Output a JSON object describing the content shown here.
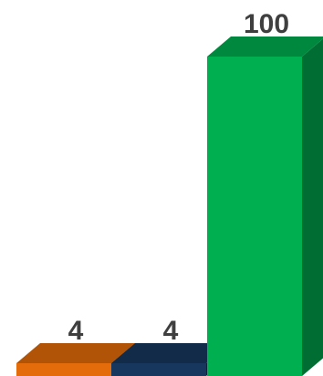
{
  "chart_data": {
    "type": "bar",
    "style": "3d",
    "categories": [
      "",
      "",
      ""
    ],
    "series": [
      {
        "values": [
          4,
          4,
          100
        ],
        "colors": [
          "#e46c0a",
          "#17375e",
          "#00b050"
        ]
      }
    ],
    "data_labels": [
      "4",
      "4",
      "100"
    ],
    "label_color": "#3f3f3f",
    "ylim": [
      0,
      100
    ],
    "grid": false,
    "legend": "none",
    "title": "",
    "xlabel": "",
    "ylabel": ""
  }
}
